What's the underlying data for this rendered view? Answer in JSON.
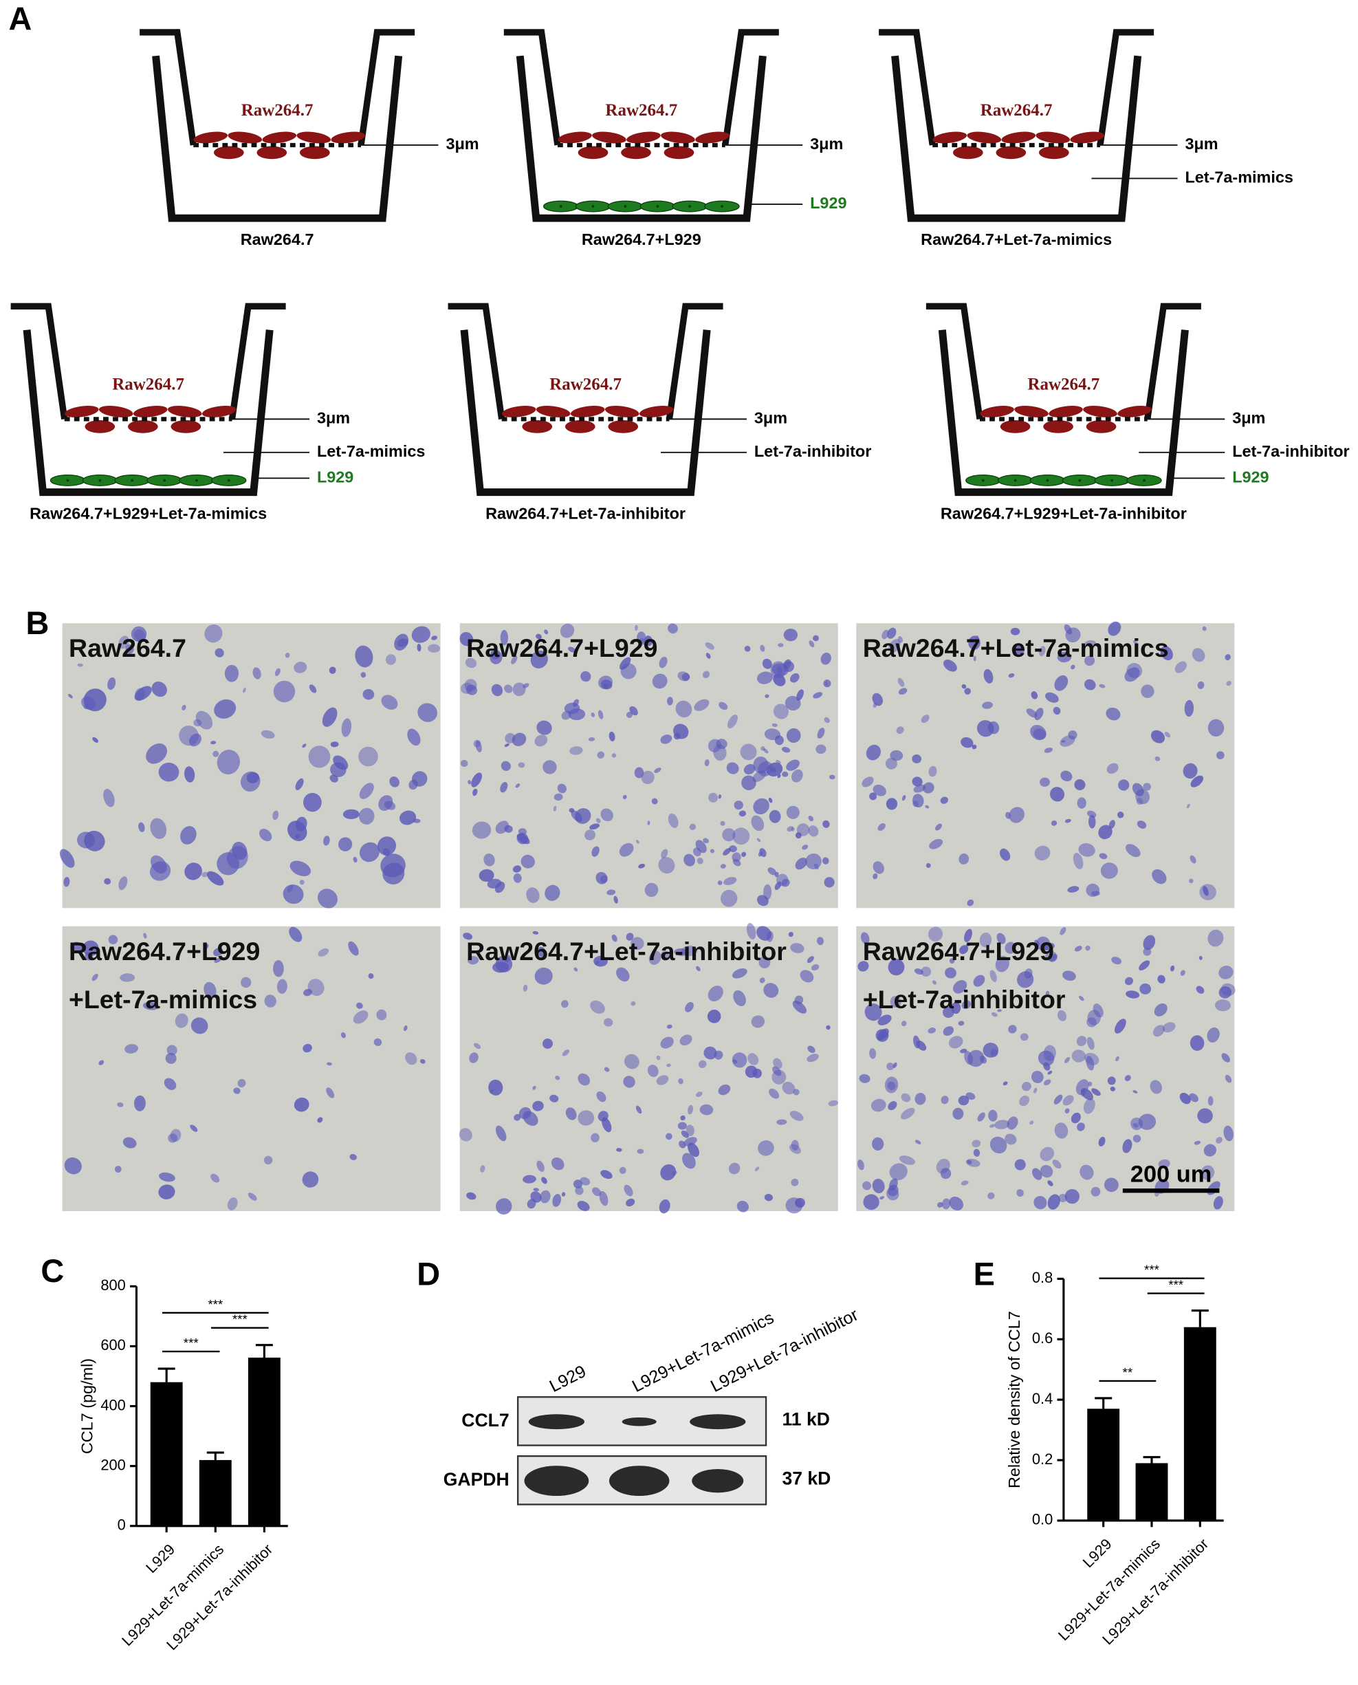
{
  "panel_a": {
    "letter": "A",
    "wells": [
      {
        "name": "Raw264.7",
        "top_cells": "Raw264.7",
        "membrane": "3μm"
      },
      {
        "name": "Raw264.7+L929",
        "top_cells": "Raw264.7",
        "membrane": "3μm",
        "bottom_cells": "L929"
      },
      {
        "name": "Raw264.7+Let-7a-mimics",
        "top_cells": "Raw264.7",
        "membrane": "3μm",
        "medium": "Let-7a-mimics"
      },
      {
        "name": "Raw264.7+L929+Let-7a-mimics",
        "top_cells": "Raw264.7",
        "membrane": "3μm",
        "medium": "Let-7a-mimics",
        "bottom_cells": "L929"
      },
      {
        "name": "Raw264.7+Let-7a-inhibitor",
        "top_cells": "Raw264.7",
        "membrane": "3μm",
        "medium": "Let-7a-inhibitor"
      },
      {
        "name": "Raw264.7+L929+Let-7a-inhibitor",
        "top_cells": "Raw264.7",
        "membrane": "3μm",
        "medium": "Let-7a-inhibitor",
        "bottom_cells": "L929"
      }
    ]
  },
  "panel_b": {
    "letter": "B",
    "images": [
      {
        "label": [
          "Raw264.7"
        ]
      },
      {
        "label": [
          "Raw264.7+L929"
        ]
      },
      {
        "label": [
          "Raw264.7+Let-7a-mimics"
        ]
      },
      {
        "label": [
          "Raw264.7+L929",
          "+Let-7a-mimics"
        ]
      },
      {
        "label": [
          "Raw264.7+Let-7a-inhibitor"
        ]
      },
      {
        "label": [
          "Raw264.7+L929",
          "+Let-7a-inhibitor"
        ]
      }
    ],
    "scale_bar": "200 um"
  },
  "panel_d": {
    "letter": "D",
    "lanes": [
      "L929",
      "L929+Let-7a-mimics",
      "L929+Let-7a-inhibitor"
    ],
    "rows": [
      {
        "name": "CCL7",
        "size": "11 kD"
      },
      {
        "name": "GAPDH",
        "size": "37 kD"
      }
    ]
  },
  "chart_data": [
    {
      "type": "bar",
      "panel": "C",
      "ylabel": "CCL7 (pg/ml)",
      "categories": [
        "L929",
        "L929+Let-7a-mimics",
        "L929+Let-7a-inhibitor"
      ],
      "values": [
        480,
        220,
        562
      ],
      "errors": [
        45,
        25,
        42
      ],
      "color": "#000000",
      "ylim": [
        0,
        800
      ],
      "yticks": [
        0,
        200,
        400,
        600,
        800
      ],
      "comparisons": [
        {
          "pair": [
            "L929",
            "L929+Let-7a-mimics"
          ],
          "label": "***"
        },
        {
          "pair": [
            "L929+Let-7a-mimics",
            "L929+Let-7a-inhibitor"
          ],
          "label": "***"
        },
        {
          "pair": [
            "L929",
            "L929+Let-7a-inhibitor"
          ],
          "label": "***"
        }
      ]
    },
    {
      "type": "bar",
      "panel": "E",
      "ylabel": "Relative density of CCL7",
      "categories": [
        "L929",
        "L929+Let-7a-mimics",
        "L929+Let-7a-inhibitor"
      ],
      "values": [
        0.37,
        0.19,
        0.64
      ],
      "errors": [
        0.035,
        0.02,
        0.055
      ],
      "color": "#000000",
      "ylim": [
        0,
        0.8
      ],
      "yticks": [
        {
          "value": 0,
          "label": "0.0"
        },
        0.2,
        0.4,
        0.6,
        0.8
      ],
      "comparisons": [
        {
          "pair": [
            "L929",
            "L929+Let-7a-mimics"
          ],
          "label": "**"
        },
        {
          "pair": [
            "L929+Let-7a-mimics",
            "L929+Let-7a-inhibitor"
          ],
          "label": "***"
        },
        {
          "pair": [
            "L929",
            "L929+Let-7a-inhibitor"
          ],
          "label": "***"
        }
      ]
    }
  ]
}
